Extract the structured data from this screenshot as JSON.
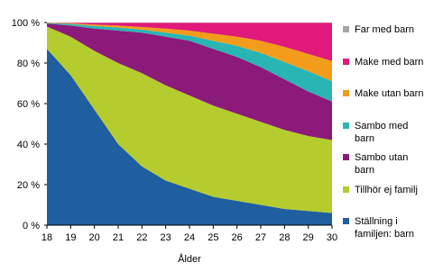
{
  "chart_data": {
    "type": "stacked-area",
    "xlabel": "Ålder",
    "x": [
      18,
      19,
      20,
      21,
      22,
      23,
      24,
      25,
      26,
      27,
      28,
      29,
      30
    ],
    "xlim": [
      18,
      30
    ],
    "xticks": [
      18,
      19,
      20,
      21,
      22,
      23,
      24,
      25,
      26,
      27,
      28,
      29,
      30
    ],
    "ylim": [
      0,
      100
    ],
    "yticks": [
      {
        "value": 0,
        "label": "0 %"
      },
      {
        "value": 20,
        "label": "20 %"
      },
      {
        "value": 40,
        "label": "40 %"
      },
      {
        "value": 60,
        "label": "60 %"
      },
      {
        "value": 80,
        "label": "80 %"
      },
      {
        "value": 100,
        "label": "100 %"
      }
    ],
    "series": [
      {
        "name": "Ställning i familjen: barn",
        "color": "#1f5fa0",
        "values": [
          87,
          74,
          57,
          40,
          29,
          22,
          18,
          14,
          12,
          10,
          8,
          7,
          6
        ]
      },
      {
        "name": "Tillhör ej familj",
        "color": "#b5cc2e",
        "values": [
          11,
          19,
          29,
          40,
          46,
          47,
          46,
          45,
          43,
          41,
          39,
          37,
          36
        ]
      },
      {
        "name": "Sambo utan barn",
        "color": "#8b1a7a",
        "values": [
          1.5,
          5.5,
          11,
          16,
          20,
          24,
          27,
          28,
          28,
          27,
          25,
          22,
          19
        ]
      },
      {
        "name": "Sambo med barn",
        "color": "#2ab5b5",
        "values": [
          0.3,
          0.8,
          1.3,
          1.5,
          1.5,
          2,
          2.5,
          4,
          5.5,
          7,
          8.5,
          10,
          10
        ]
      },
      {
        "name": "Make utan barn",
        "color": "#f39c1b",
        "values": [
          0.2,
          0.3,
          0.7,
          1,
          1.3,
          2,
          2.5,
          3.5,
          4.5,
          6,
          7.5,
          8.5,
          10
        ]
      },
      {
        "name": "Make med barn",
        "color": "#e0197a",
        "values": [
          0,
          0.3,
          0.9,
          1.4,
          2.1,
          2.9,
          3.9,
          5.4,
          6.9,
          8.9,
          11.9,
          15.4,
          18.9
        ]
      },
      {
        "name": "Far med barn",
        "color": "#a6a6a6",
        "values": [
          0,
          0.1,
          0.1,
          0.1,
          0.1,
          0.1,
          0.1,
          0.1,
          0.1,
          0.1,
          0.1,
          0.1,
          0.1
        ]
      }
    ]
  }
}
